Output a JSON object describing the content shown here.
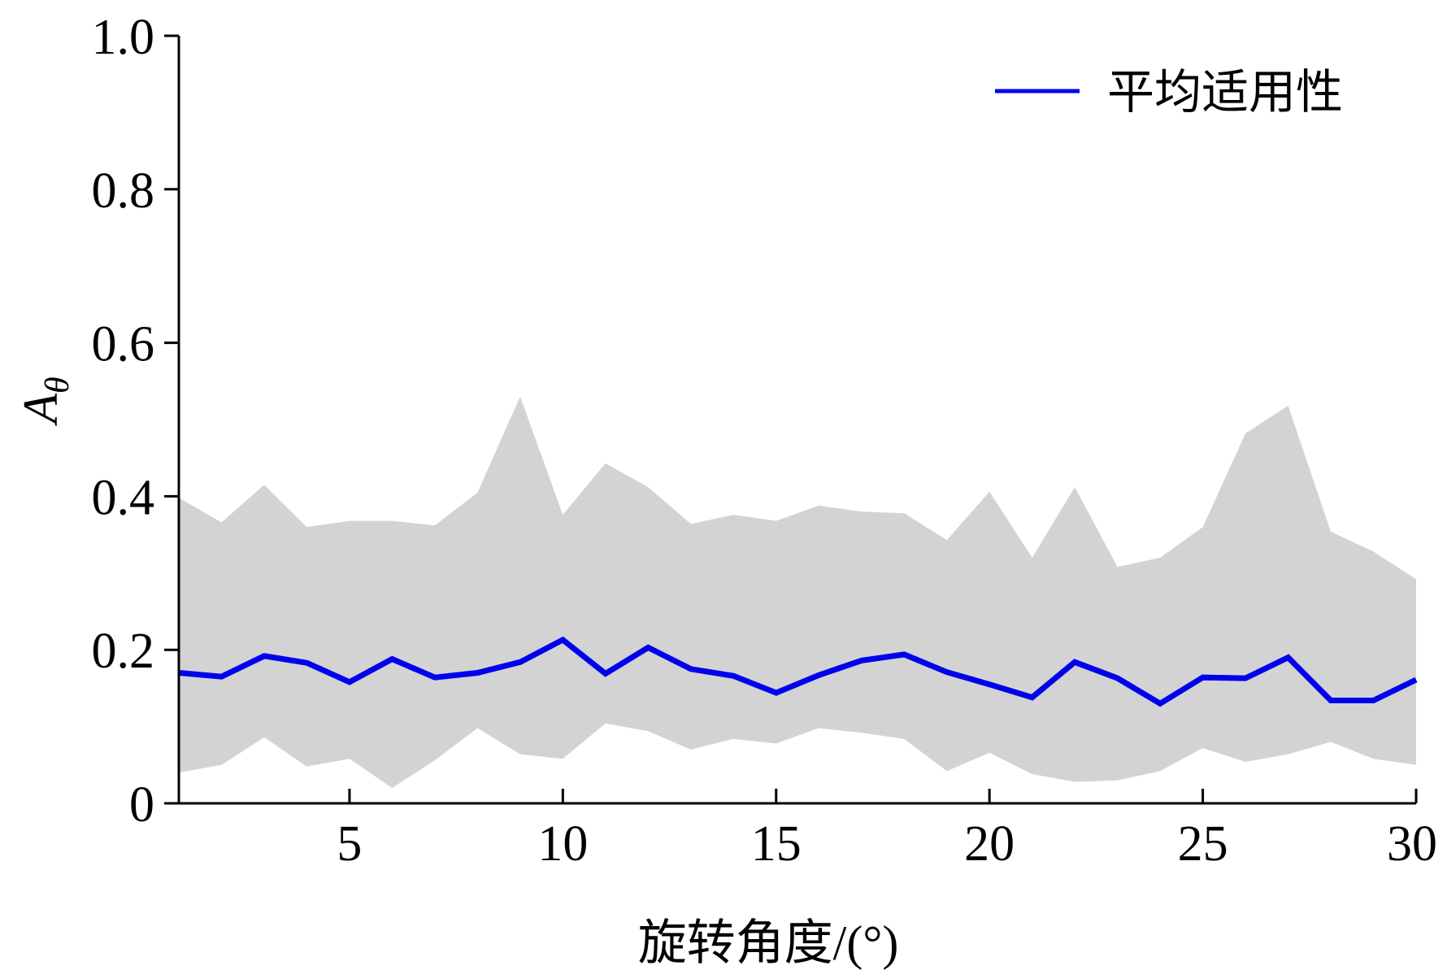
{
  "chart_data": {
    "type": "area",
    "xlabel": "旋转角度/(°)",
    "ylabel_main": "A",
    "ylabel_sub": "θ",
    "xlim": [
      1,
      30
    ],
    "ylim": [
      0,
      1.0
    ],
    "x_ticks": [
      5,
      10,
      15,
      20,
      25,
      30
    ],
    "x_tick_labels": [
      "5",
      "10",
      "15",
      "20",
      "25",
      "30"
    ],
    "y_ticks": [
      0,
      0.2,
      0.4,
      0.6,
      0.8,
      1.0
    ],
    "y_tick_labels": [
      "0",
      "0.2",
      "0.4",
      "0.6",
      "0.8",
      "1.0"
    ],
    "grid": false,
    "legend_position": "top-right",
    "x": [
      1,
      2,
      3,
      4,
      5,
      6,
      7,
      8,
      9,
      10,
      11,
      12,
      13,
      14,
      15,
      16,
      17,
      18,
      19,
      20,
      21,
      22,
      23,
      24,
      25,
      26,
      27,
      28,
      29,
      30
    ],
    "series": [
      {
        "name": "平均适用性",
        "color": "#0000ee",
        "values": [
          0.17,
          0.165,
          0.192,
          0.183,
          0.158,
          0.188,
          0.164,
          0.17,
          0.184,
          0.213,
          0.169,
          0.203,
          0.175,
          0.166,
          0.144,
          0.167,
          0.186,
          0.194,
          0.171,
          0.155,
          0.138,
          0.184,
          0.163,
          0.13,
          0.164,
          0.163,
          0.19,
          0.134,
          0.134,
          0.161
        ]
      }
    ],
    "band": {
      "color": "#d3d3d3",
      "upper": [
        0.398,
        0.366,
        0.415,
        0.36,
        0.368,
        0.368,
        0.362,
        0.405,
        0.53,
        0.376,
        0.443,
        0.412,
        0.364,
        0.376,
        0.368,
        0.388,
        0.38,
        0.378,
        0.343,
        0.406,
        0.32,
        0.412,
        0.308,
        0.32,
        0.36,
        0.482,
        0.518,
        0.354,
        0.328,
        0.292
      ],
      "lower": [
        0.04,
        0.05,
        0.086,
        0.048,
        0.058,
        0.02,
        0.056,
        0.098,
        0.064,
        0.058,
        0.104,
        0.094,
        0.07,
        0.084,
        0.078,
        0.098,
        0.092,
        0.084,
        0.042,
        0.066,
        0.038,
        0.028,
        0.03,
        0.042,
        0.072,
        0.054,
        0.064,
        0.08,
        0.058,
        0.05
      ]
    }
  }
}
